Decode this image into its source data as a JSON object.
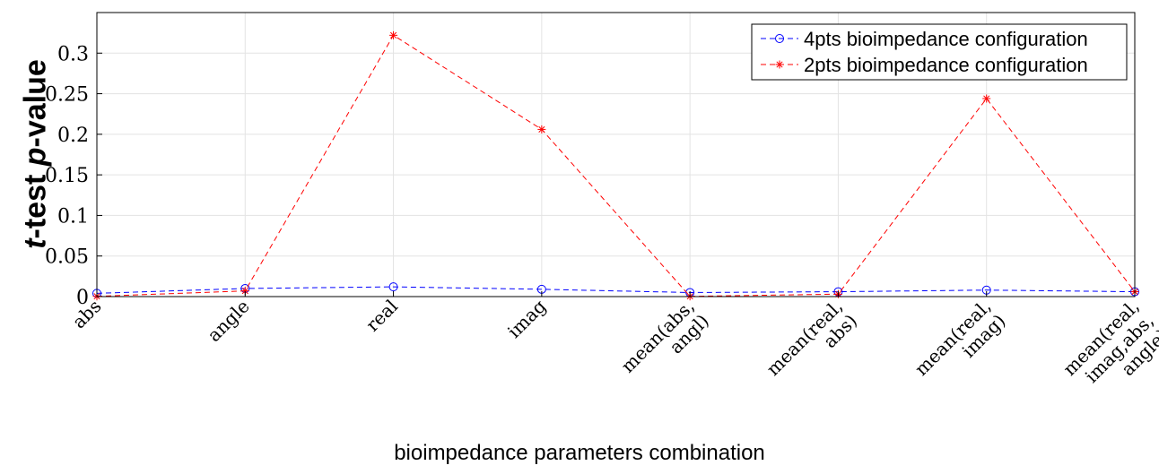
{
  "chart_data": {
    "type": "line",
    "categories": [
      "abs",
      "angle",
      "real",
      "imag",
      "mean(abs, angl)",
      "mean(real, abs)",
      "mean(real, imag)",
      "mean(real, imag,abs, angle)"
    ],
    "category_lines": [
      [
        "abs"
      ],
      [
        "angle"
      ],
      [
        "real"
      ],
      [
        "imag"
      ],
      [
        "mean(abs,",
        "angl)"
      ],
      [
        "mean(real,",
        "abs)"
      ],
      [
        "mean(real,",
        "imag)"
      ],
      [
        "mean(real,",
        "imag,abs,",
        "angle)"
      ]
    ],
    "series": [
      {
        "name": "4pts bioimpedance configuration",
        "color": "#0000ff",
        "marker": "circle",
        "values": [
          0.004,
          0.01,
          0.012,
          0.009,
          0.005,
          0.006,
          0.008,
          0.006
        ]
      },
      {
        "name": "2pts bioimpedance configuration",
        "color": "#ff0000",
        "marker": "asterisk",
        "values": [
          0.0003,
          0.007,
          0.322,
          0.206,
          0.0003,
          0.003,
          0.244,
          0.006
        ]
      }
    ],
    "ylabel_prefix": "t",
    "ylabel_middle": "-test  ",
    "ylabel_p": "p",
    "ylabel_suffix": "-value",
    "xlabel": "bioimpedance parameters combination",
    "ylim": [
      0,
      0.35
    ],
    "yticks": [
      0,
      0.05,
      0.1,
      0.15,
      0.2,
      0.25,
      0.3
    ],
    "ytick_labels": [
      "0",
      "0.05",
      "0.1",
      "0.15",
      "0.2",
      "0.25",
      "0.3"
    ],
    "grid": true,
    "legend_position": "top-right"
  }
}
